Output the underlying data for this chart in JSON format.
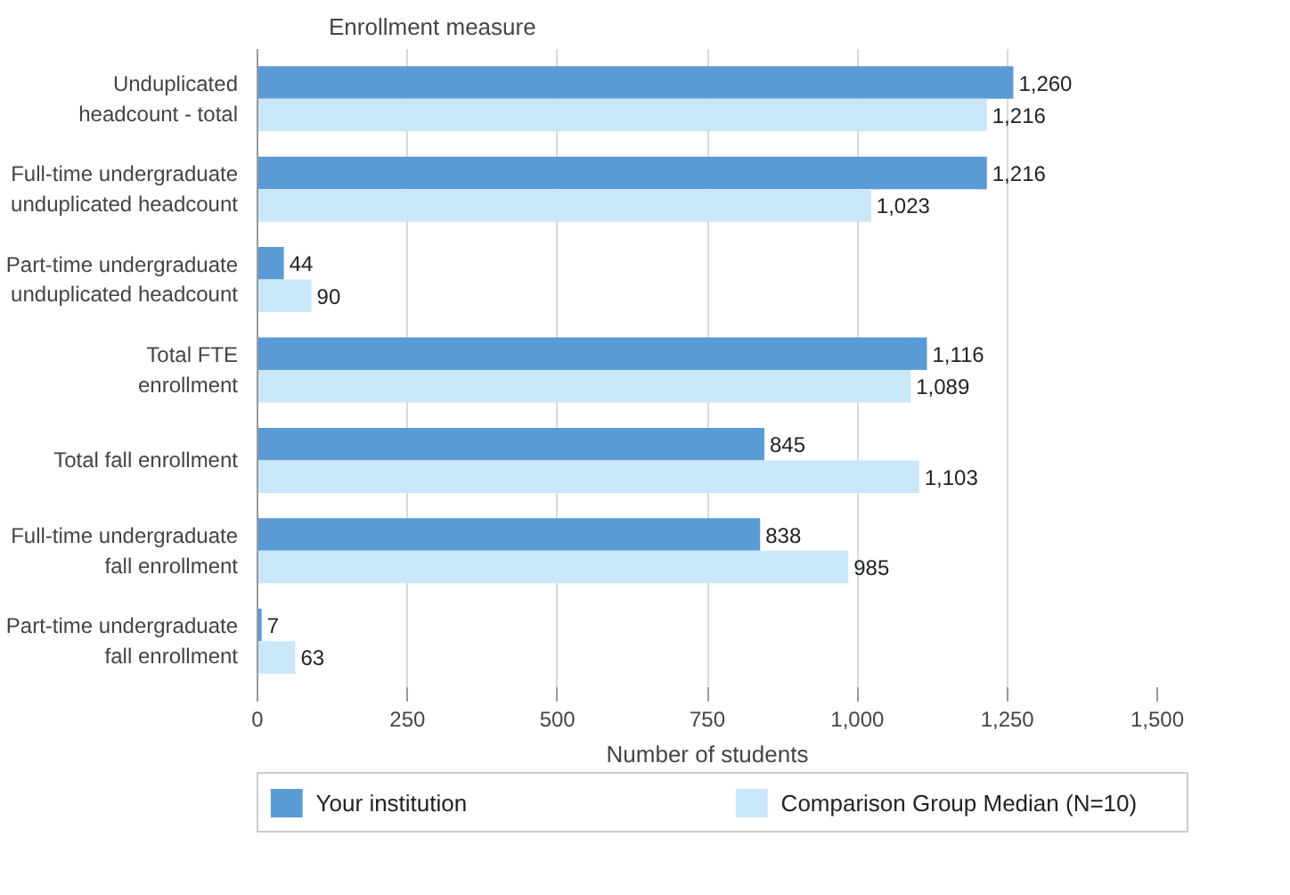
{
  "chart_data": {
    "type": "bar",
    "orientation": "horizontal",
    "ylabel": "Enrollment measure",
    "xlabel": "Number of students",
    "categories": [
      "Unduplicated\nheadcount - total",
      "Full-time undergraduate\nunduplicated headcount",
      "Part-time undergraduate\nunduplicated headcount",
      "Total FTE\nenrollment",
      "Total fall enrollment",
      "Full-time undergraduate\nfall enrollment",
      "Part-time undergraduate\nfall enrollment"
    ],
    "series": [
      {
        "name": "Your institution",
        "color": "#5b9bd5",
        "values": [
          1260,
          1216,
          44,
          1116,
          845,
          838,
          7
        ],
        "value_labels": [
          "1,260",
          "1,216",
          "44",
          "1,116",
          "845",
          "838",
          "7"
        ]
      },
      {
        "name": "Comparison Group Median (N=10)",
        "color": "#c9e7f8",
        "values": [
          1216,
          1023,
          90,
          1089,
          1103,
          985,
          63
        ],
        "value_labels": [
          "1,216",
          "1,023",
          "90",
          "1,089",
          "1,103",
          "985",
          "63"
        ]
      }
    ],
    "xlim": [
      0,
      1500
    ],
    "xticks": [
      0,
      250,
      500,
      750,
      {
        "value": 1000,
        "label": "1,000"
      },
      {
        "value": 1250,
        "label": "1,250"
      },
      {
        "value": 1500,
        "label": "1,500"
      }
    ],
    "grid": "x",
    "legend": "bottom"
  }
}
